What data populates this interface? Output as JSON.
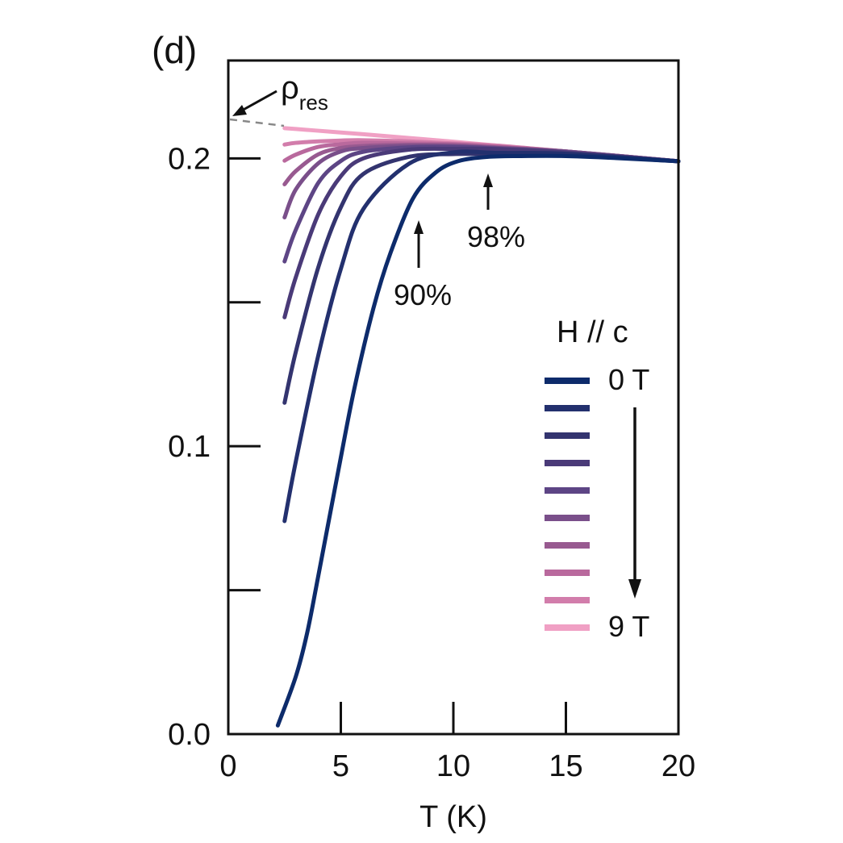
{
  "chart_data": {
    "type": "line",
    "panel_label": "(d)",
    "title": "",
    "xlabel": "T (K)",
    "ylabel": "",
    "xlim": [
      0,
      20
    ],
    "ylim": [
      0,
      0.234
    ],
    "xticks": [
      0,
      5,
      10,
      15,
      20
    ],
    "xtick_labels": [
      "0",
      "5",
      "10",
      "15",
      "20"
    ],
    "yticks": [
      0.0,
      0.05,
      0.1,
      0.15,
      0.2
    ],
    "ytick_labels": [
      "0.0",
      "",
      "0.1",
      "",
      "0.2"
    ],
    "grid": false,
    "legend": {
      "title": "H // c",
      "placement": "right",
      "first_label": "0 T",
      "last_label": "9 T"
    },
    "annotations": {
      "rho_res": {
        "symbol": "ρ",
        "subscript": "res",
        "value": 0.2135
      },
      "arrow_90": {
        "label": "90%",
        "x": 8.3,
        "y": 0.184
      },
      "arrow_98": {
        "label": "98%",
        "x": 11.5,
        "y": 0.2005
      }
    },
    "series": [
      {
        "field_T": 0,
        "color": "#0d2b6b",
        "points": [
          [
            2.2,
            0.003
          ],
          [
            3,
            0.02
          ],
          [
            3.5,
            0.035
          ],
          [
            4,
            0.055
          ],
          [
            4.9,
            0.092
          ],
          [
            5.6,
            0.12
          ],
          [
            6.45,
            0.148
          ],
          [
            7.2,
            0.167
          ],
          [
            8.2,
            0.186
          ],
          [
            9.2,
            0.195
          ],
          [
            10.2,
            0.199
          ],
          [
            11.5,
            0.2005
          ],
          [
            13,
            0.2008
          ],
          [
            15,
            0.2008
          ],
          [
            17,
            0.2002
          ],
          [
            20,
            0.199
          ]
        ]
      },
      {
        "field_T": 1,
        "color": "#23306e",
        "points": [
          [
            2.5,
            0.074
          ],
          [
            3,
            0.0947
          ],
          [
            4,
            0.1316
          ],
          [
            5,
            0.1616
          ],
          [
            6,
            0.1824
          ],
          [
            8,
            0.198
          ],
          [
            10,
            0.2021
          ],
          [
            12,
            0.2019
          ],
          [
            15,
            0.2016
          ],
          [
            20,
            0.199
          ]
        ]
      },
      {
        "field_T": 2,
        "color": "#33346f",
        "points": [
          [
            2.5,
            0.1151
          ],
          [
            3,
            0.1328
          ],
          [
            4,
            0.1622
          ],
          [
            5,
            0.183
          ],
          [
            6,
            0.1946
          ],
          [
            8,
            0.2005
          ],
          [
            10,
            0.2015
          ],
          [
            12,
            0.2014
          ],
          [
            15,
            0.2012
          ],
          [
            20,
            0.199
          ]
        ]
      },
      {
        "field_T": 3,
        "color": "#4a3a78",
        "points": [
          [
            2.5,
            0.1448
          ],
          [
            3,
            0.1587
          ],
          [
            4,
            0.1806
          ],
          [
            5,
            0.1938
          ],
          [
            6,
            0.2
          ],
          [
            8,
            0.203
          ],
          [
            10,
            0.2033
          ],
          [
            12,
            0.2032
          ],
          [
            15,
            0.202
          ],
          [
            20,
            0.199
          ]
        ]
      },
      {
        "field_T": 4,
        "color": "#5d4585",
        "points": [
          [
            2.5,
            0.1642
          ],
          [
            3,
            0.1752
          ],
          [
            4,
            0.1915
          ],
          [
            5,
            0.1991
          ],
          [
            6,
            0.2023
          ],
          [
            8,
            0.2038
          ],
          [
            10,
            0.204
          ],
          [
            12,
            0.2034
          ],
          [
            15,
            0.2022
          ],
          [
            20,
            0.199
          ]
        ]
      },
      {
        "field_T": 5,
        "color": "#7a4f8a",
        "points": [
          [
            2.5,
            0.1795
          ],
          [
            3,
            0.1892
          ],
          [
            4,
            0.1983
          ],
          [
            5,
            0.2024
          ],
          [
            6,
            0.2036
          ],
          [
            8,
            0.2043
          ],
          [
            10,
            0.2042
          ],
          [
            12,
            0.2036
          ],
          [
            15,
            0.2024
          ],
          [
            20,
            0.199
          ]
        ]
      },
      {
        "field_T": 6,
        "color": "#985a90",
        "points": [
          [
            2.5,
            0.191
          ],
          [
            3,
            0.1956
          ],
          [
            4,
            0.2014
          ],
          [
            5,
            0.2036
          ],
          [
            6,
            0.2043
          ],
          [
            8,
            0.2047
          ],
          [
            10,
            0.2046
          ],
          [
            12,
            0.2038
          ],
          [
            15,
            0.2024
          ],
          [
            20,
            0.199
          ]
        ]
      },
      {
        "field_T": 7,
        "color": "#b9699d",
        "points": [
          [
            2.5,
            0.1992
          ],
          [
            3,
            0.2013
          ],
          [
            4,
            0.204
          ],
          [
            5,
            0.2049
          ],
          [
            6,
            0.2054
          ],
          [
            8,
            0.2052
          ],
          [
            10,
            0.2049
          ],
          [
            12,
            0.204
          ],
          [
            15,
            0.2024
          ],
          [
            20,
            0.199
          ]
        ]
      },
      {
        "field_T": 8,
        "color": "#d27dab",
        "points": [
          [
            2.5,
            0.2048
          ],
          [
            3,
            0.2054
          ],
          [
            4,
            0.2059
          ],
          [
            5,
            0.2062
          ],
          [
            6,
            0.2063
          ],
          [
            8,
            0.2059
          ],
          [
            10,
            0.2052
          ],
          [
            12,
            0.2044
          ],
          [
            15,
            0.2024
          ],
          [
            20,
            0.199
          ]
        ]
      },
      {
        "field_T": 9,
        "color": "#f0a0c4",
        "points": [
          [
            2.5,
            0.2105
          ],
          [
            3,
            0.2102
          ],
          [
            4,
            0.2096
          ],
          [
            5,
            0.209
          ],
          [
            6,
            0.2084
          ],
          [
            8,
            0.2071
          ],
          [
            10,
            0.2058
          ],
          [
            12,
            0.2044
          ],
          [
            15,
            0.2024
          ],
          [
            20,
            0.199
          ]
        ]
      }
    ]
  }
}
